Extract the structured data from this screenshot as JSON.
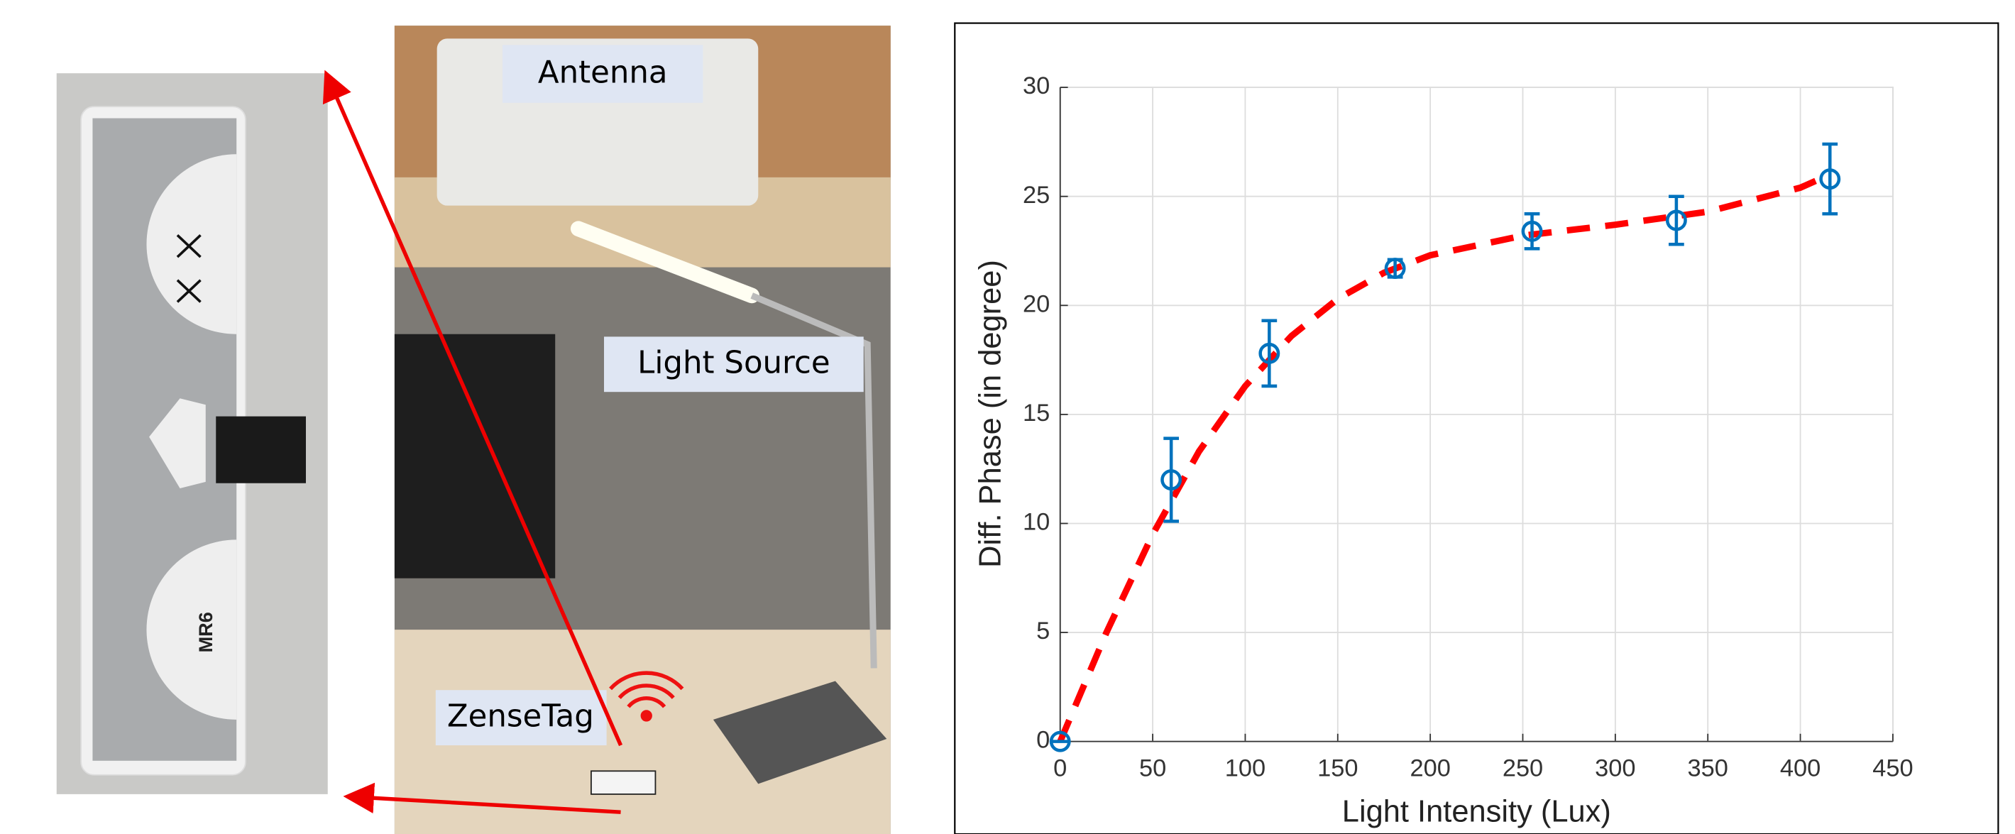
{
  "photo_labels": {
    "antenna": "Antenna",
    "light_source": "Light Source",
    "tag": "ZenseTag",
    "tag_print": "MR6"
  },
  "chart_data": {
    "type": "scatter",
    "xlabel": "Light Intensity (Lux)",
    "ylabel": "Diff. Phase (in degree)",
    "xlim": [
      0,
      450
    ],
    "ylim": [
      0,
      30
    ],
    "xticks": [
      0,
      50,
      100,
      150,
      200,
      250,
      300,
      350,
      400,
      450
    ],
    "yticks": [
      0,
      5,
      10,
      15,
      20,
      25,
      30
    ],
    "grid": true,
    "points": {
      "color": "#0072bd",
      "x": [
        0,
        60,
        113,
        181,
        255,
        333,
        416
      ],
      "values": [
        0,
        12,
        17.8,
        21.7,
        23.4,
        23.9,
        25.8
      ],
      "errors": [
        0,
        1.9,
        1.5,
        0.4,
        0.8,
        1.1,
        1.6
      ]
    },
    "fit": {
      "color": "#ff0000",
      "x": [
        0,
        25,
        50,
        75,
        100,
        125,
        150,
        175,
        200,
        250,
        300,
        350,
        400,
        416
      ],
      "values": [
        0,
        5,
        9.5,
        13.3,
        16.3,
        18.6,
        20.3,
        21.5,
        22.3,
        23.2,
        23.7,
        24.3,
        25.4,
        26
      ]
    }
  }
}
